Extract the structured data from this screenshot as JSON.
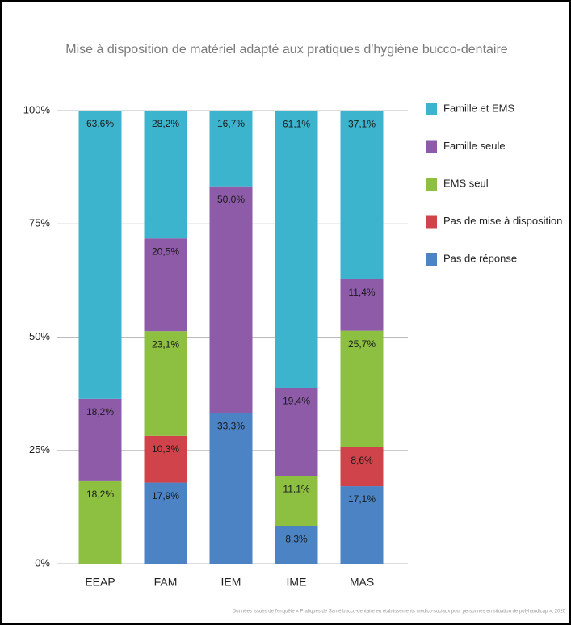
{
  "chart_data": {
    "type": "stacked_bar",
    "title": "Mise à disposition de matériel adapté aux pratiques d'hygiène bucco-dentaire",
    "categories": [
      "EEAP",
      "FAM",
      "IEM",
      "IME",
      "MAS"
    ],
    "series": [
      {
        "name": "Famille et EMS",
        "color": "#3db4cd",
        "values": [
          63.6,
          28.2,
          16.7,
          61.1,
          37.1
        ],
        "value_labels": [
          "63,6%",
          "28,2%",
          "16,7%",
          "61,1%",
          "37,1%"
        ]
      },
      {
        "name": "Famille seule",
        "color": "#8d5ba8",
        "values": [
          18.2,
          20.5,
          50.0,
          19.4,
          11.4
        ],
        "value_labels": [
          "18,2%",
          "20,5%",
          "50,0%",
          "19,4%",
          "11,4%"
        ]
      },
      {
        "name": "EMS seul",
        "color": "#8dbf40",
        "values": [
          18.2,
          23.1,
          null,
          11.1,
          25.7
        ],
        "value_labels": [
          "18,2%",
          "23,1%",
          null,
          "11,1%",
          "25,7%"
        ]
      },
      {
        "name": "Pas de mise à disposition",
        "color": "#d1434b",
        "values": [
          null,
          10.3,
          null,
          null,
          8.6
        ],
        "value_labels": [
          null,
          "10,3%",
          null,
          null,
          "8,6%"
        ]
      },
      {
        "name": "Pas de réponse",
        "color": "#4b83c5",
        "values": [
          null,
          17.9,
          33.3,
          8.3,
          17.1
        ],
        "value_labels": [
          null,
          "17,9%",
          "33,3%",
          "8,3%",
          "17,1%"
        ]
      }
    ],
    "ylim": [
      0,
      100
    ],
    "yticks": [
      {
        "value": 0,
        "label": "0%"
      },
      {
        "value": 25,
        "label": "25%"
      },
      {
        "value": 50,
        "label": "50%"
      },
      {
        "value": 75,
        "label": "75%"
      },
      {
        "value": 100,
        "label": "100%"
      }
    ],
    "grid": true,
    "legend": "right",
    "source": "Données issues de l'enquête « Pratiques de Santé bucco-dentaire en établissements médico-sociaux pour personnes en situation de polyhandicap », 2020"
  }
}
